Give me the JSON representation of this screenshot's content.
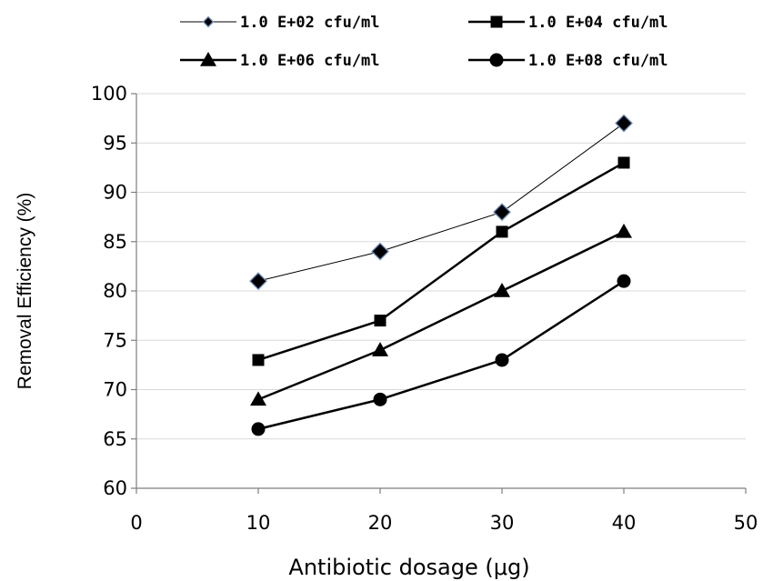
{
  "chart_data": {
    "type": "line",
    "x": [
      10,
      20,
      30,
      40
    ],
    "series": [
      {
        "name": "1.0 E+02 cfu/ml",
        "values": [
          81,
          84,
          88,
          97
        ],
        "marker": "diamond",
        "line": "thin"
      },
      {
        "name": "1.0 E+04 cfu/ml",
        "values": [
          73,
          77,
          86,
          93
        ],
        "marker": "square",
        "line": "thick"
      },
      {
        "name": "1.0 E+06 cfu/ml",
        "values": [
          69,
          74,
          80,
          86
        ],
        "marker": "triangle",
        "line": "thick"
      },
      {
        "name": "1.0 E+08 cfu/ml",
        "values": [
          66,
          69,
          73,
          81
        ],
        "marker": "circle",
        "line": "thick"
      }
    ],
    "xlabel": "Antibiotic dosage (μg)",
    "ylabel": "Removal Efficiency (%)",
    "xlim": [
      0,
      50
    ],
    "ylim": [
      60,
      100
    ],
    "x_ticks": [
      0,
      10,
      20,
      30,
      40,
      50
    ],
    "y_ticks": [
      60,
      65,
      70,
      75,
      80,
      85,
      90,
      95,
      100
    ],
    "x_tick_labels": [
      "0",
      "10",
      "20",
      "30",
      "40",
      "50"
    ],
    "y_tick_labels": [
      "60",
      "65",
      "70",
      "75",
      "80",
      "85",
      "90",
      "95",
      "100"
    ],
    "grid": "horizontal",
    "legend_position": "top",
    "colors": {
      "line": "#000000",
      "diamond_fill": "#000000",
      "diamond_edge": "#6a8fc4",
      "gridline": "#d9d9d9",
      "axis": "#7f7f7f"
    }
  }
}
